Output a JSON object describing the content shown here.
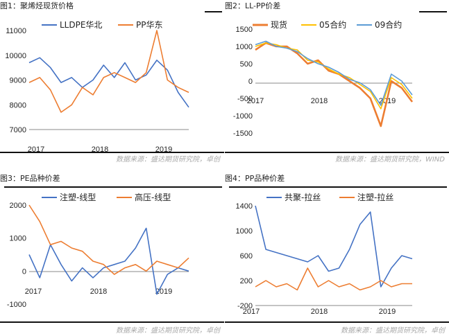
{
  "source_left": "数据来源：盛达期货研究院，卓创",
  "source_right": "数据来源：盛达期货研究院，WIND",
  "source_bottom_left": "数据来源：盛达期货研究院，卓创",
  "source_bottom_right": "数据来源：盛达期货研究院，卓创",
  "colors": {
    "blue": "#4472C4",
    "orange": "#ED7D31",
    "yellow": "#FFC000",
    "lightblue": "#5B9BD5"
  },
  "chart_data": [
    {
      "type": "line",
      "title": "图1：聚烯烃现货价格",
      "x_ticks": [
        "2017",
        "2018",
        "2019"
      ],
      "ylim": [
        7000,
        11000
      ],
      "y_ticks": [
        7000,
        8000,
        9000,
        10000,
        11000
      ],
      "legend_position": "top",
      "series": [
        {
          "name": "LLDPE华北",
          "color": "#4472C4",
          "x": [
            0,
            2,
            4,
            6,
            8,
            10,
            12,
            14,
            16,
            18,
            20,
            22,
            24,
            26,
            28,
            30
          ],
          "values": [
            9700,
            9900,
            9500,
            8900,
            9100,
            8700,
            9000,
            9600,
            9100,
            9700,
            9000,
            9200,
            9800,
            9400,
            8500,
            7900
          ]
        },
        {
          "name": "PP华东",
          "color": "#ED7D31",
          "x": [
            0,
            2,
            4,
            6,
            8,
            10,
            12,
            14,
            16,
            18,
            20,
            22,
            24,
            26,
            28,
            30
          ],
          "values": [
            8900,
            9100,
            8600,
            7700,
            8000,
            8700,
            8400,
            9100,
            9300,
            9100,
            8900,
            9300,
            11000,
            9000,
            8700,
            8500
          ]
        }
      ]
    },
    {
      "type": "line",
      "title": "图2：LL-PP价差",
      "x_ticks": [
        "2017",
        "2018",
        "2019"
      ],
      "ylim": [
        -1500,
        1500
      ],
      "y_ticks": [
        -1500,
        -1000,
        -500,
        0,
        500,
        1000,
        1500
      ],
      "legend_position": "top",
      "series": [
        {
          "name": "现货",
          "color": "#ED7D31",
          "x": [
            0,
            2,
            4,
            6,
            8,
            10,
            12,
            14,
            16,
            18,
            20,
            22,
            24,
            26,
            28,
            30
          ],
          "values": [
            900,
            1100,
            1000,
            1000,
            800,
            500,
            600,
            300,
            200,
            0,
            -200,
            -500,
            -1300,
            0,
            -200,
            -600
          ]
        },
        {
          "name": "05合约",
          "color": "#FFC000",
          "x": [
            0,
            2,
            4,
            6,
            8,
            10,
            12,
            14,
            16,
            18,
            20,
            22,
            24,
            26,
            28,
            30
          ],
          "values": [
            1000,
            1100,
            1050,
            950,
            900,
            600,
            550,
            350,
            200,
            100,
            -100,
            -300,
            -800,
            100,
            -100,
            -500
          ]
        },
        {
          "name": "09合约",
          "color": "#5B9BD5",
          "x": [
            0,
            2,
            4,
            6,
            8,
            10,
            12,
            14,
            16,
            18,
            20,
            22,
            24,
            26,
            28,
            30
          ],
          "values": [
            1050,
            1150,
            1000,
            950,
            850,
            650,
            500,
            400,
            250,
            50,
            -50,
            -250,
            -700,
            200,
            0,
            -400
          ]
        }
      ]
    },
    {
      "type": "line",
      "title": "图3：PE品种价差",
      "x_ticks": [
        "2017",
        "2018",
        "2019"
      ],
      "ylim": [
        -1000,
        2000
      ],
      "y_ticks": [
        -1000,
        0,
        1000,
        2000
      ],
      "legend_position": "top",
      "series": [
        {
          "name": "注塑-线型",
          "color": "#4472C4",
          "x": [
            0,
            2,
            4,
            6,
            8,
            10,
            12,
            14,
            16,
            18,
            20,
            22,
            24,
            26,
            28,
            30
          ],
          "values": [
            500,
            -200,
            800,
            200,
            -300,
            100,
            -200,
            100,
            200,
            300,
            700,
            1300,
            -700,
            -100,
            100,
            0
          ]
        },
        {
          "name": "高压-线型",
          "color": "#ED7D31",
          "x": [
            0,
            2,
            4,
            6,
            8,
            10,
            12,
            14,
            16,
            18,
            20,
            22,
            24,
            26,
            28,
            30
          ],
          "values": [
            2000,
            1500,
            800,
            900,
            700,
            600,
            300,
            200,
            -100,
            100,
            200,
            0,
            300,
            200,
            100,
            400
          ]
        }
      ]
    },
    {
      "type": "line",
      "title": "图4：PP品种价差",
      "x_ticks": [
        "2017",
        "2018",
        "2019"
      ],
      "ylim": [
        -200,
        1400
      ],
      "y_ticks": [
        -200,
        200,
        600,
        1000,
        1400
      ],
      "legend_position": "top",
      "series": [
        {
          "name": "共聚-拉丝",
          "color": "#4472C4",
          "x": [
            0,
            2,
            4,
            6,
            8,
            10,
            12,
            14,
            16,
            18,
            20,
            22,
            24,
            26,
            28,
            30
          ],
          "values": [
            1400,
            700,
            650,
            600,
            550,
            500,
            600,
            350,
            400,
            700,
            1100,
            1300,
            100,
            400,
            600,
            550
          ]
        },
        {
          "name": "注塑-拉丝",
          "color": "#ED7D31",
          "x": [
            0,
            2,
            4,
            6,
            8,
            10,
            12,
            14,
            16,
            18,
            20,
            22,
            24,
            26,
            28,
            30
          ],
          "values": [
            100,
            200,
            100,
            150,
            50,
            400,
            100,
            200,
            100,
            150,
            50,
            100,
            200,
            100,
            150,
            150
          ]
        }
      ]
    }
  ]
}
